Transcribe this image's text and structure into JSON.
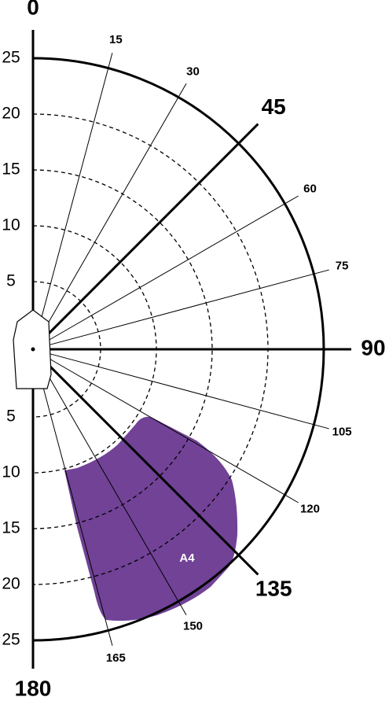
{
  "angles": [
    0,
    15,
    30,
    45,
    60,
    75,
    90,
    105,
    120,
    135,
    150,
    165,
    180
  ],
  "radius_labels_top": [
    25,
    20,
    15,
    10,
    5
  ],
  "radius_labels_bottom": [
    5,
    10,
    15,
    20,
    25
  ],
  "region": {
    "label": "A4"
  }
}
